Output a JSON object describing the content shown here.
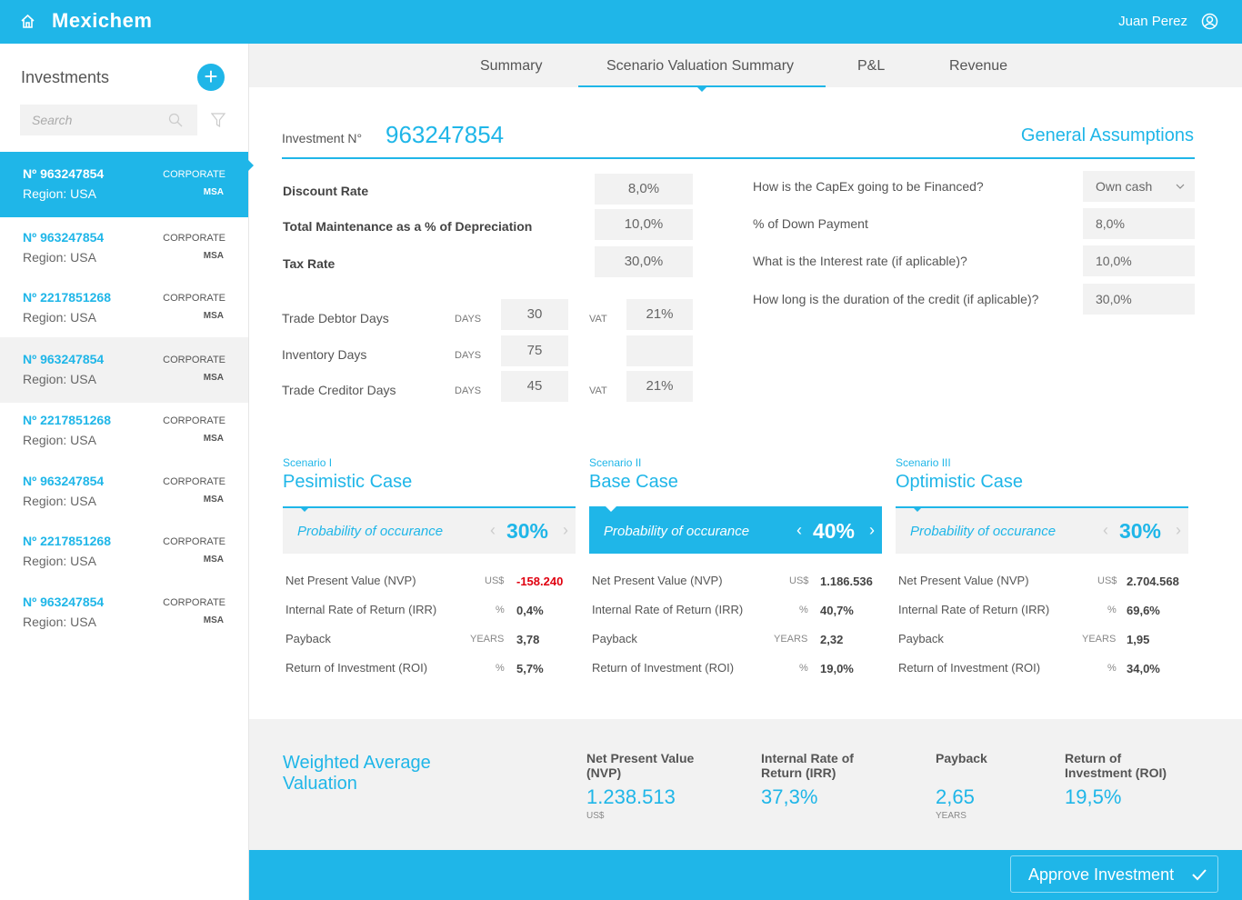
{
  "header": {
    "brand": "Mexichem",
    "user": "Juan Perez",
    "icons": [
      "home-icon",
      "user-circle-icon"
    ]
  },
  "sidebar": {
    "title": "Investments",
    "search_placeholder": "Search",
    "items": [
      {
        "no": "Nº 963247854",
        "region": "Region: USA",
        "type": "CORPORATE",
        "unit": "MSA"
      },
      {
        "no": "Nº 963247854",
        "region": "Region: USA",
        "type": "CORPORATE",
        "unit": "MSA"
      },
      {
        "no": "Nº 2217851268",
        "region": "Region: USA",
        "type": "CORPORATE",
        "unit": "MSA"
      },
      {
        "no": "Nº 963247854",
        "region": "Region: USA",
        "type": "CORPORATE",
        "unit": "MSA"
      },
      {
        "no": "Nº 2217851268",
        "region": "Region: USA",
        "type": "CORPORATE",
        "unit": "MSA"
      },
      {
        "no": "Nº 963247854",
        "region": "Region: USA",
        "type": "CORPORATE",
        "unit": "MSA"
      },
      {
        "no": "Nº 2217851268",
        "region": "Region: USA",
        "type": "CORPORATE",
        "unit": "MSA"
      },
      {
        "no": "Nº 963247854",
        "region": "Region: USA",
        "type": "CORPORATE",
        "unit": "MSA"
      }
    ]
  },
  "tabs": [
    "Summary",
    "Scenario Valuation Summary",
    "P&L",
    "Revenue"
  ],
  "active_tab": "Scenario Valuation Summary",
  "main": {
    "inv_label": "Investment N°",
    "inv_no": "963247854",
    "general": "General Assumptions",
    "rates": [
      {
        "label": "Discount Rate",
        "value": "8,0%"
      },
      {
        "label": "Total Maintenance as a % of Depreciation",
        "value": "10,0%"
      },
      {
        "label": "Tax Rate",
        "value": "30,0%"
      }
    ],
    "days": [
      {
        "label": "Trade Debtor Days",
        "unit": "DAYS",
        "value": "30",
        "vat_label": "VAT",
        "vat": "21%"
      },
      {
        "label": "Inventory Days",
        "unit": "DAYS",
        "value": "75",
        "vat_label": "",
        "vat": ""
      },
      {
        "label": "Trade Creditor Days",
        "unit": "DAYS",
        "value": "45",
        "vat_label": "VAT",
        "vat": "21%"
      }
    ],
    "financing": [
      {
        "label": "How is the CapEx going to be Financed?",
        "value": "Own cash"
      },
      {
        "label": "% of Down Payment",
        "value": "8,0%"
      },
      {
        "label": "What is the Interest rate (if aplicable)?",
        "value": "10,0%"
      },
      {
        "label": "How long is the duration of the credit (if aplicable)?",
        "value": "30,0%"
      }
    ]
  },
  "scenarios": [
    {
      "tag": "Scenario I",
      "name": "Pesimistic Case",
      "prob_label": "Probability of occurance",
      "prob": "30%",
      "active": false,
      "metrics": [
        [
          "Net Present Value (NVP)",
          "US$",
          "-158.240"
        ],
        [
          "Internal Rate of Return (IRR)",
          "%",
          "0,4%"
        ],
        [
          "Payback",
          "YEARS",
          "3,78"
        ],
        [
          "Return of Investment (ROI)",
          "%",
          "5,7%"
        ]
      ]
    },
    {
      "tag": "Scenario II",
      "name": "Base Case",
      "prob_label": "Probability of occurance",
      "prob": "40%",
      "active": true,
      "metrics": [
        [
          "Net Present Value (NVP)",
          "US$",
          "1.186.536"
        ],
        [
          "Internal Rate of Return (IRR)",
          "%",
          "40,7%"
        ],
        [
          "Payback",
          "YEARS",
          "2,32"
        ],
        [
          "Return of Investment (ROI)",
          "%",
          "19,0%"
        ]
      ]
    },
    {
      "tag": "Scenario III",
      "name": "Optimistic Case",
      "prob_label": "Probability of occurance",
      "prob": "30%",
      "active": false,
      "metrics": [
        [
          "Net Present Value (NVP)",
          "US$",
          "2.704.568"
        ],
        [
          "Internal Rate of Return (IRR)",
          "%",
          "69,6%"
        ],
        [
          "Payback",
          "YEARS",
          "1,95"
        ],
        [
          "Return of Investment (ROI)",
          "%",
          "34,0%"
        ]
      ]
    }
  ],
  "weighted": {
    "title": "Weighted Average Valuation",
    "cols": [
      {
        "head": "Net Present Value (NVP)",
        "value": "1.238.513",
        "unit": "US$"
      },
      {
        "head": "Internal Rate of Return (IRR)",
        "value": "37,3%",
        "unit": ""
      },
      {
        "head": "Payback",
        "value": "2,65",
        "unit": "YEARS"
      },
      {
        "head": "Return of Investment (ROI)",
        "value": "19,5%",
        "unit": ""
      }
    ]
  },
  "footer": {
    "approve": "Approve Investment"
  },
  "colors": {
    "accent": "#1fb6e8",
    "negative": "#e0000f",
    "panel": "#f2f2f2"
  }
}
